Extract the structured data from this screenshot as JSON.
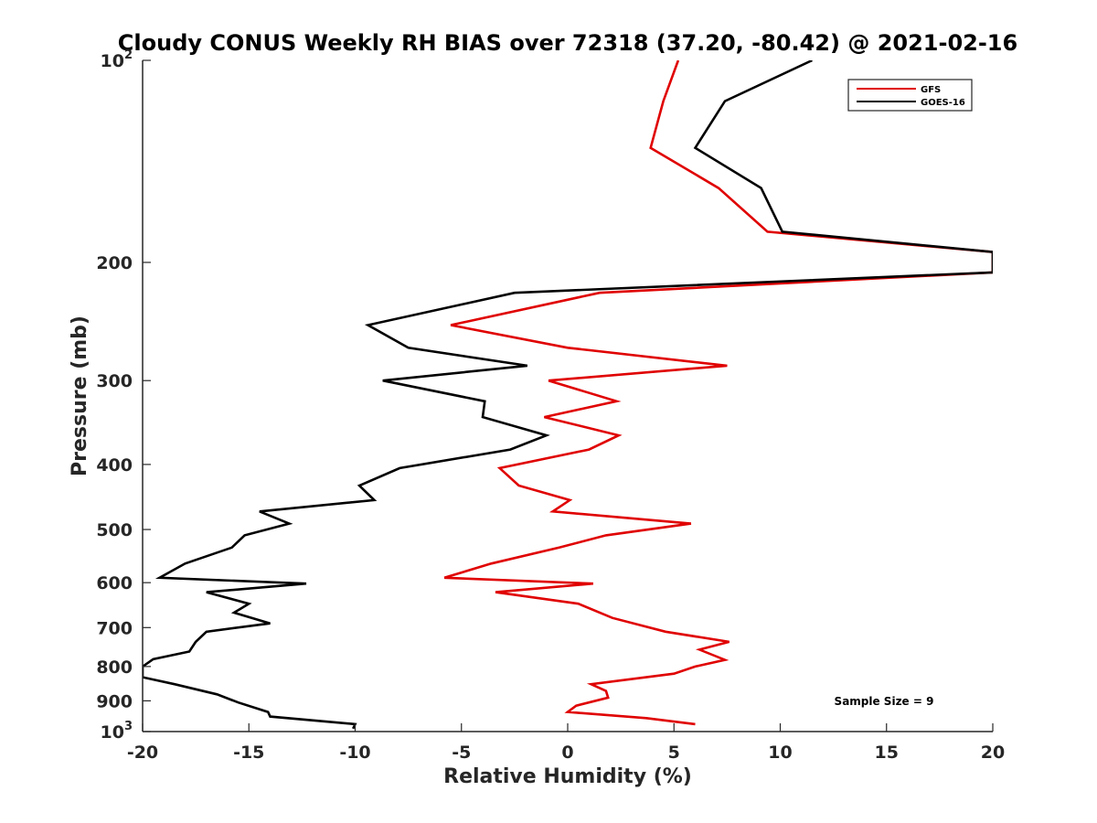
{
  "chart_data": {
    "type": "line",
    "title": "Cloudy CONUS Weekly RH BIAS over 72318 (37.20, -80.42) @ 2021-02-16",
    "xlabel": "Relative Humidity (%)",
    "ylabel": "Pressure (mb)",
    "xlim": [
      -20,
      20
    ],
    "ylim": [
      100,
      1000
    ],
    "yscale": "log",
    "y_reversed": true,
    "x_ticks": [
      -20,
      -15,
      -10,
      -5,
      0,
      5,
      10,
      15,
      20
    ],
    "x_tick_labels": [
      "-20",
      "-15",
      "-10",
      "-5",
      "0",
      "5",
      "10",
      "15",
      "20"
    ],
    "y_ticks": [
      200,
      300,
      400,
      500,
      600,
      700,
      800,
      900
    ],
    "y_tick_labels": [
      "200",
      "300",
      "400",
      "500",
      "600",
      "700",
      "800",
      "900"
    ],
    "y_power_ticks": [
      {
        "value": 100,
        "base": "10",
        "exp": "2"
      },
      {
        "value": 1000,
        "base": "10",
        "exp": "3"
      }
    ],
    "legend_position": "top-right",
    "annotation": "Sample Size = 9",
    "series": [
      {
        "name": "GFS",
        "color": "#e00000",
        "points": [
          [
            5.2,
            100
          ],
          [
            4.5,
            115
          ],
          [
            3.9,
            135
          ],
          [
            7.1,
            155
          ],
          [
            9.4,
            180
          ],
          [
            20.0,
            193
          ],
          [
            20.0,
            207
          ],
          [
            1.5,
            222
          ],
          [
            -5.5,
            248
          ],
          [
            0.0,
            268
          ],
          [
            7.5,
            285
          ],
          [
            -0.9,
            300
          ],
          [
            2.3,
            322
          ],
          [
            -1.1,
            340
          ],
          [
            2.4,
            362
          ],
          [
            1.0,
            380
          ],
          [
            -3.2,
            405
          ],
          [
            -2.3,
            430
          ],
          [
            0.1,
            452
          ],
          [
            -0.7,
            470
          ],
          [
            5.8,
            490
          ],
          [
            1.8,
            510
          ],
          [
            -0.4,
            532
          ],
          [
            -3.6,
            562
          ],
          [
            -5.8,
            590
          ],
          [
            1.2,
            602
          ],
          [
            -3.4,
            620
          ],
          [
            0.5,
            645
          ],
          [
            2.1,
            677
          ],
          [
            4.6,
            710
          ],
          [
            7.6,
            735
          ],
          [
            6.2,
            755
          ],
          [
            7.4,
            782
          ],
          [
            6.0,
            800
          ],
          [
            5.0,
            820
          ],
          [
            1.1,
            850
          ],
          [
            1.8,
            870
          ],
          [
            1.9,
            890
          ],
          [
            0.4,
            915
          ],
          [
            0.0,
            935
          ],
          [
            3.7,
            955
          ],
          [
            6.0,
            975
          ]
        ]
      },
      {
        "name": "GOES-16",
        "color": "#000000",
        "points": [
          [
            11.5,
            100
          ],
          [
            7.4,
            115
          ],
          [
            6.0,
            135
          ],
          [
            9.1,
            155
          ],
          [
            10.1,
            180
          ],
          [
            20.0,
            193
          ],
          [
            20.0,
            207
          ],
          [
            -2.5,
            222
          ],
          [
            -9.4,
            248
          ],
          [
            -7.5,
            268
          ],
          [
            -1.9,
            285
          ],
          [
            -8.7,
            300
          ],
          [
            -3.9,
            322
          ],
          [
            -4.0,
            340
          ],
          [
            -1.0,
            362
          ],
          [
            -2.7,
            380
          ],
          [
            -7.9,
            405
          ],
          [
            -9.8,
            430
          ],
          [
            -9.1,
            452
          ],
          [
            -14.5,
            470
          ],
          [
            -13.1,
            490
          ],
          [
            -15.2,
            510
          ],
          [
            -15.8,
            532
          ],
          [
            -18.0,
            562
          ],
          [
            -19.2,
            590
          ],
          [
            -12.3,
            602
          ],
          [
            -17.0,
            620
          ],
          [
            -15.0,
            645
          ],
          [
            -15.7,
            665
          ],
          [
            -14.0,
            690
          ],
          [
            -17.0,
            710
          ],
          [
            -17.5,
            735
          ],
          [
            -17.8,
            760
          ],
          [
            -19.5,
            780
          ],
          [
            -20.0,
            800
          ],
          [
            -20.0,
            830
          ],
          [
            -18.5,
            850
          ],
          [
            -16.5,
            880
          ],
          [
            -15.5,
            905
          ],
          [
            -14.1,
            935
          ],
          [
            -14.0,
            950
          ],
          [
            -10.0,
            975
          ],
          [
            -10.1,
            990
          ]
        ]
      }
    ]
  }
}
